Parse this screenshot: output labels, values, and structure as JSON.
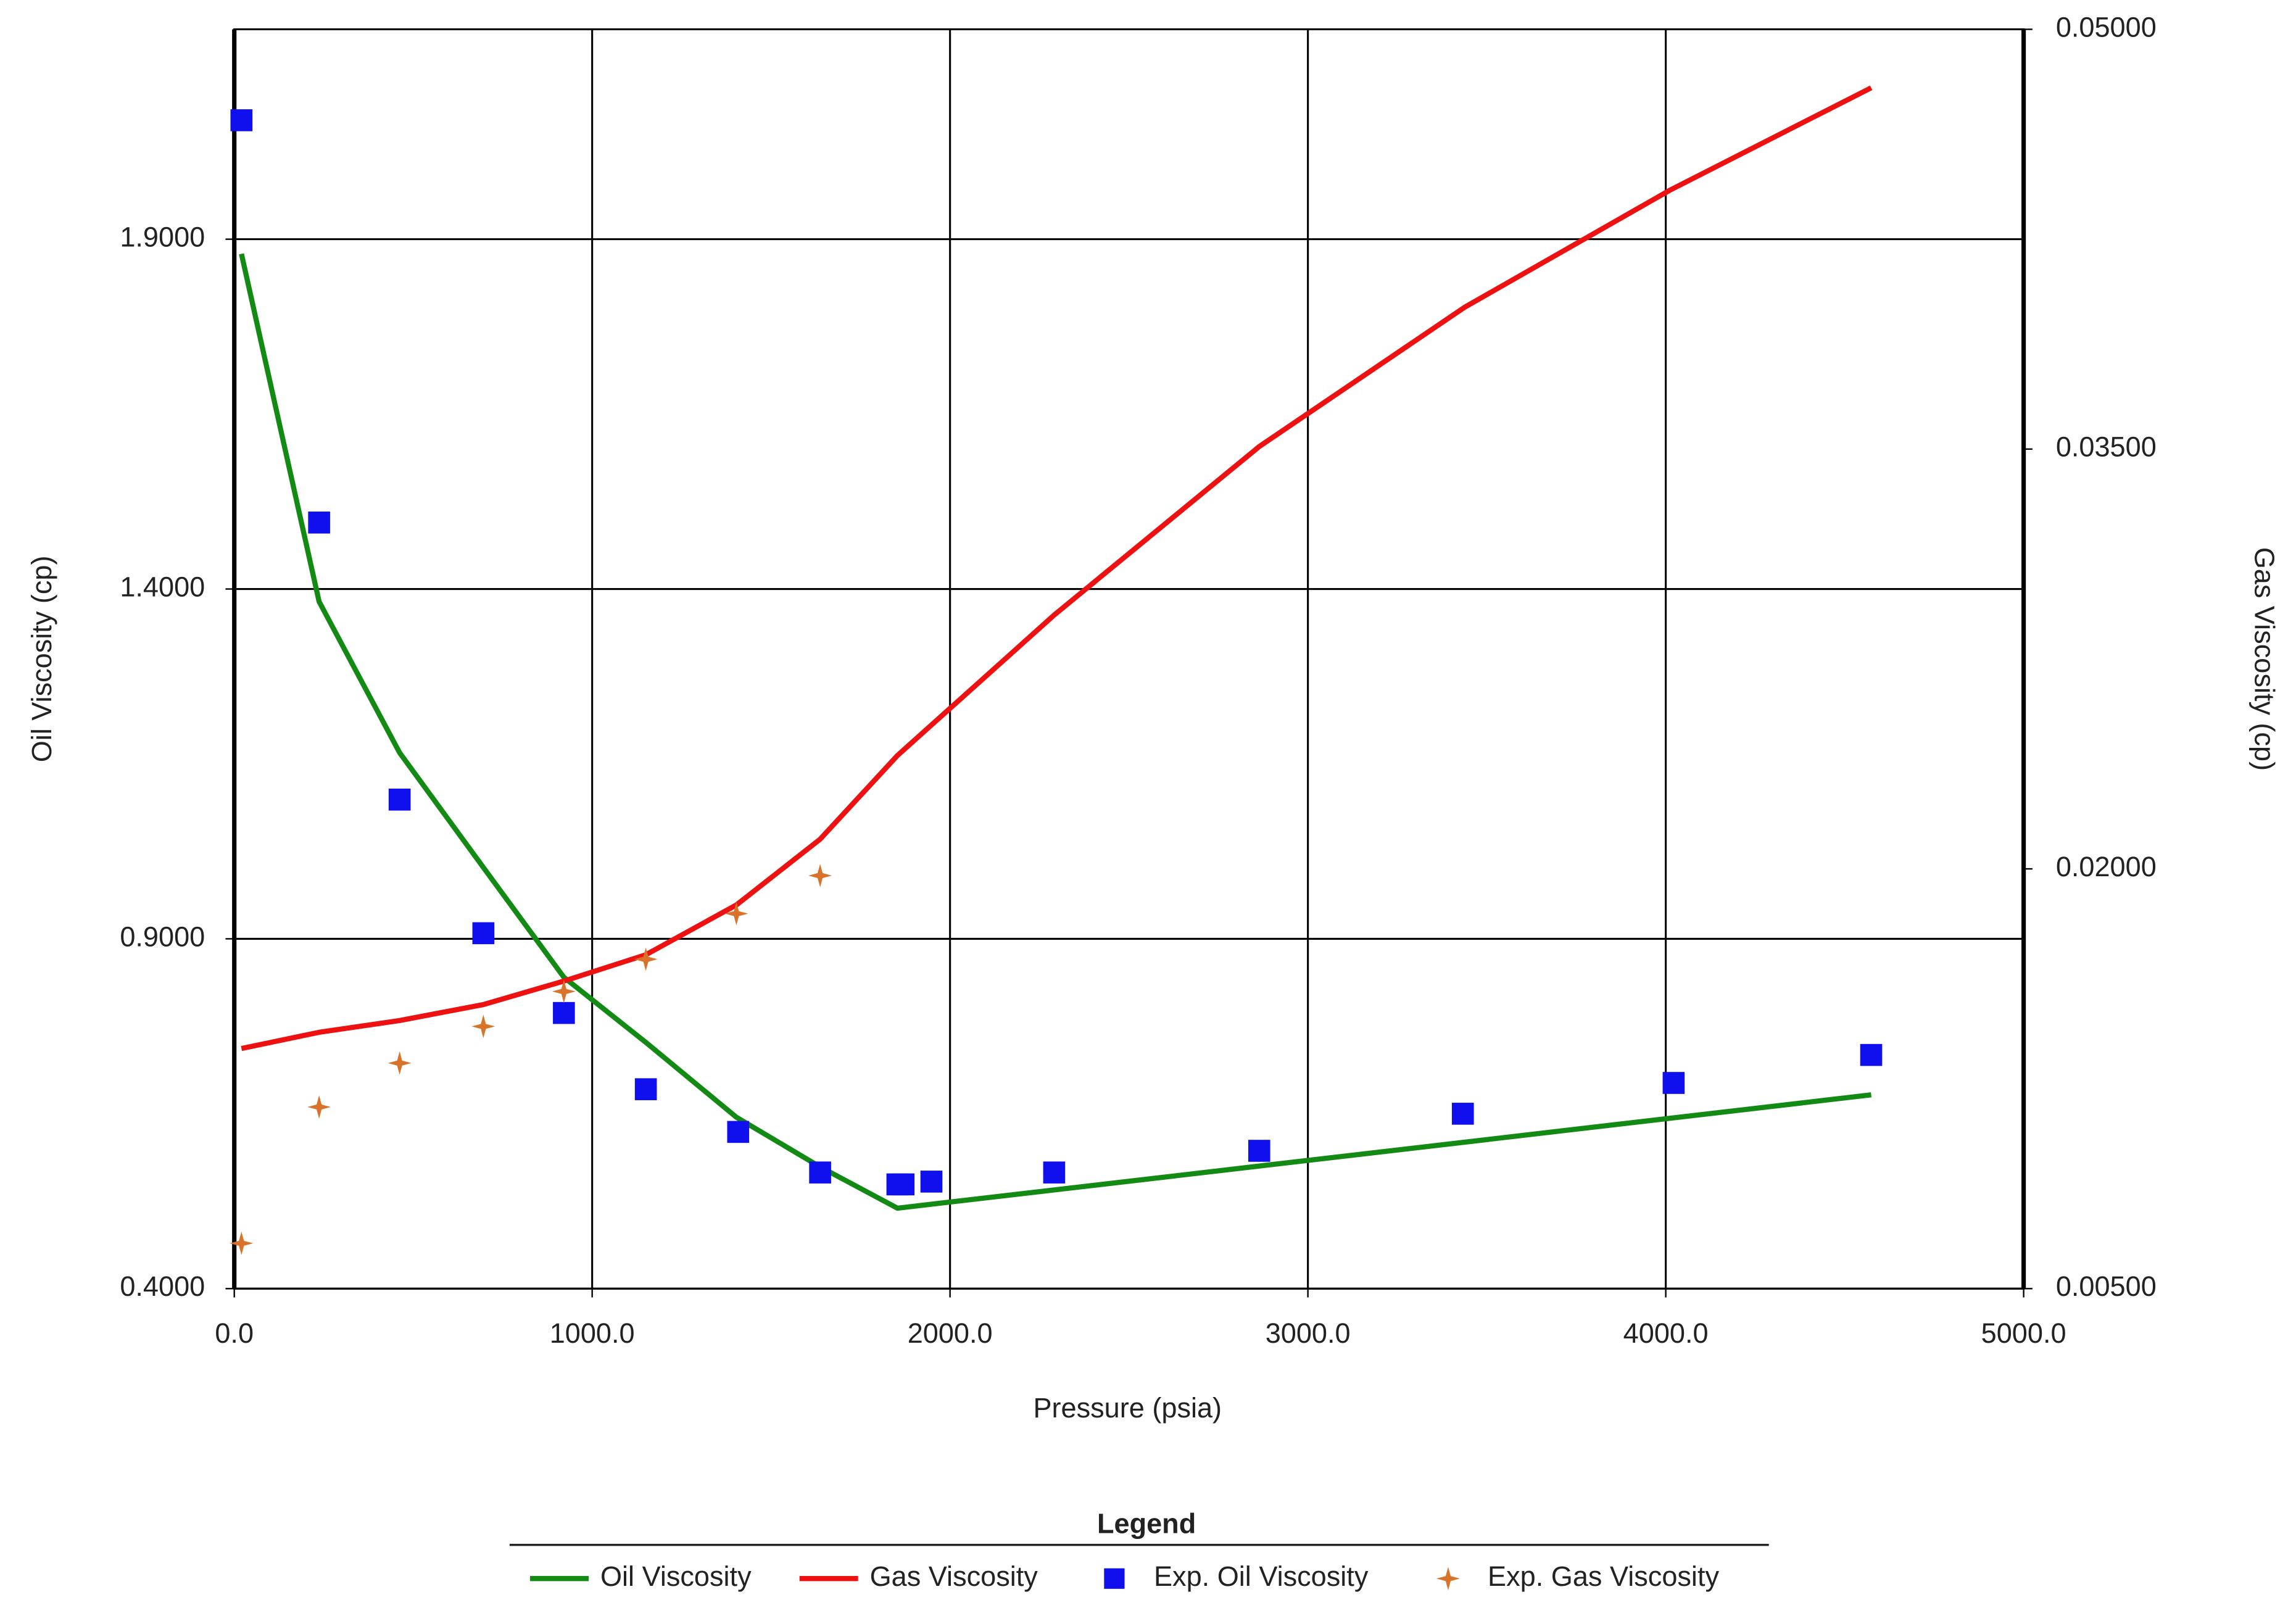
{
  "chart_data": {
    "type": "line",
    "x_label": "Pressure (psia)",
    "y_label": "Oil Viscosity (cp)",
    "y2_label": "Gas Viscosity (cp)",
    "legend_title": "Legend",
    "legend_position": "bottom",
    "grid": true,
    "xlim": [
      0,
      5000
    ],
    "xticks": [
      {
        "value": 0,
        "label": "0.0"
      },
      {
        "value": 1000,
        "label": "1000.0"
      },
      {
        "value": 2000,
        "label": "2000.0"
      },
      {
        "value": 3000,
        "label": "3000.0"
      },
      {
        "value": 4000,
        "label": "4000.0"
      },
      {
        "value": 5000,
        "label": "5000.0"
      }
    ],
    "ylim": [
      0.4,
      2.2
    ],
    "yticks": [
      {
        "value": 0.4,
        "label": "0.4000"
      },
      {
        "value": 0.9,
        "label": "0.9000"
      },
      {
        "value": 1.4,
        "label": "1.4000"
      },
      {
        "value": 1.9,
        "label": "1.9000"
      }
    ],
    "y2lim": [
      0.005,
      0.05
    ],
    "y2ticks": [
      {
        "value": 0.005,
        "label": "0.00500"
      },
      {
        "value": 0.02,
        "label": "0.02000"
      },
      {
        "value": 0.035,
        "label": "0.03500"
      },
      {
        "value": 0.05,
        "label": "0.05000"
      }
    ],
    "series": [
      {
        "name": "Oil Viscosity",
        "color": "#138a13",
        "style": "line",
        "x": [
          20,
          237,
          462,
          696,
          921,
          1150,
          1403,
          1637,
          1853,
          4574
        ],
        "values": [
          1.879,
          1.382,
          1.166,
          1.002,
          0.845,
          0.752,
          0.645,
          0.574,
          0.515,
          0.677
        ]
      },
      {
        "name": "Gas Viscosity",
        "color": "#ee1111",
        "style": "line",
        "axis": "y2",
        "x": [
          20,
          237,
          462,
          696,
          921,
          1150,
          1403,
          1637,
          1853,
          2291,
          2864,
          3437,
          4010,
          4574
        ],
        "values": [
          0.01358,
          0.01416,
          0.01458,
          0.01515,
          0.01599,
          0.01693,
          0.01871,
          0.02106,
          0.02405,
          0.02907,
          0.03509,
          0.04006,
          0.04424,
          0.04791
        ]
      },
      {
        "name": "Exp. Oil Viscosity",
        "color": "#1010ee",
        "style": "square",
        "x": [
          20,
          237,
          462,
          696,
          921,
          1150,
          1408,
          1637,
          1853,
          1870,
          1948,
          2291,
          2864,
          3433,
          4022,
          4574
        ],
        "values": [
          2.07,
          1.495,
          1.099,
          0.908,
          0.794,
          0.685,
          0.624,
          0.566,
          0.549,
          0.549,
          0.553,
          0.566,
          0.597,
          0.65,
          0.694,
          0.734
        ]
      },
      {
        "name": "Exp. Gas Viscosity",
        "color": "#d9732a",
        "style": "star",
        "axis": "y2",
        "x": [
          20,
          237,
          462,
          696,
          921,
          1150,
          1403,
          1637
        ],
        "values": [
          0.00662,
          0.01149,
          0.01306,
          0.01437,
          0.01562,
          0.01677,
          0.0184,
          0.01976
        ]
      }
    ]
  }
}
